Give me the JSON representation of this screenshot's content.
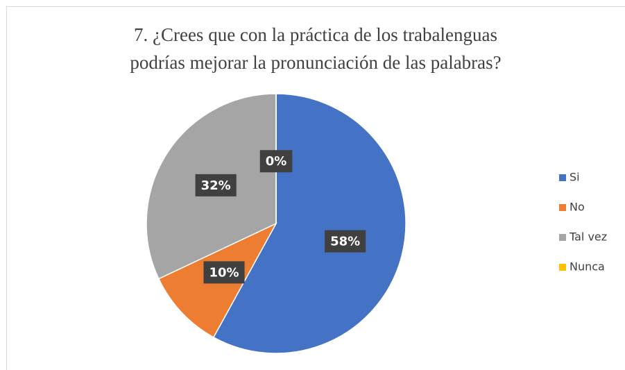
{
  "chart_data": {
    "type": "pie",
    "title": "7. ¿Crees que con la práctica de los trabalenguas podrías mejorar la pronunciación de las palabras?",
    "categories": [
      "Si",
      "No",
      "Tal vez",
      "Nunca"
    ],
    "values": [
      58,
      10,
      32,
      0
    ],
    "value_labels": [
      "58%",
      "10%",
      "32%",
      "0%"
    ],
    "colors": [
      "#4472c4",
      "#ed7d31",
      "#a5a5a5",
      "#ffc000"
    ],
    "legend": "right"
  }
}
